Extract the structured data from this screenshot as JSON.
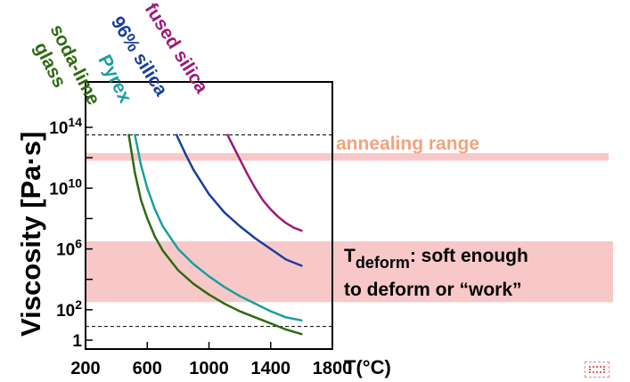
{
  "chart_data": {
    "type": "line",
    "title": "",
    "xlabel": "T(°C)",
    "ylabel": "Viscosity [Pa·s]",
    "x_unit_note": "°C",
    "xlim": [
      200,
      1800
    ],
    "ylim_log10": [
      0,
      17
    ],
    "y_scale": "log",
    "x_ticks": [
      {
        "value": 200,
        "label": "200"
      },
      {
        "value": 600,
        "label": "600"
      },
      {
        "value": 1000,
        "label": "1000"
      },
      {
        "value": 1400,
        "label": "1400"
      },
      {
        "value": 1800,
        "label": "1800"
      }
    ],
    "y_ticks_log10": [
      0,
      2,
      4,
      6,
      8,
      10,
      12,
      14,
      16
    ],
    "y_tick_labels": [
      {
        "log10": 0,
        "base": "1",
        "exp": ""
      },
      {
        "log10": 2,
        "base": "10",
        "exp": "2"
      },
      {
        "log10": 6,
        "base": "10",
        "exp": "6"
      },
      {
        "log10": 10,
        "base": "10",
        "exp": "10"
      },
      {
        "log10": 14,
        "base": "10",
        "exp": "14"
      }
    ],
    "series": [
      {
        "name": "soda-lime glass",
        "color": "#2e6b10",
        "x": [
          480,
          520,
          560,
          600,
          650,
          700,
          800,
          900,
          1000,
          1100,
          1200,
          1300,
          1400,
          1500,
          1600
        ],
        "log10_y": [
          13.5,
          11.0,
          9.2,
          8.0,
          6.8,
          5.9,
          4.6,
          3.7,
          3.0,
          2.4,
          1.9,
          1.5,
          1.1,
          0.7,
          0.4
        ]
      },
      {
        "name": "Pyrex",
        "color": "#1a9f9f",
        "x": [
          520,
          560,
          600,
          650,
          700,
          800,
          900,
          1000,
          1100,
          1200,
          1300,
          1400,
          1500,
          1600
        ],
        "log10_y": [
          13.5,
          11.5,
          10.0,
          8.6,
          7.5,
          6.0,
          5.0,
          4.2,
          3.5,
          2.9,
          2.4,
          1.9,
          1.5,
          1.3
        ]
      },
      {
        "name": "96% silica",
        "color": "#1a3f9c",
        "x": [
          790,
          850,
          900,
          1000,
          1100,
          1200,
          1300,
          1400,
          1500,
          1600
        ],
        "log10_y": [
          13.5,
          12.2,
          11.2,
          9.6,
          8.4,
          7.5,
          6.7,
          6.0,
          5.3,
          4.9
        ]
      },
      {
        "name": "fused silica",
        "color": "#9c1a7c",
        "x": [
          1120,
          1200,
          1250,
          1300,
          1350,
          1400,
          1450,
          1500,
          1550,
          1600
        ],
        "log10_y": [
          13.5,
          11.9,
          10.9,
          10.0,
          9.2,
          8.6,
          8.1,
          7.7,
          7.4,
          7.2
        ]
      }
    ],
    "reference_lines_log10": [
      13.5,
      0.9
    ],
    "bands": [
      {
        "name": "annealing range",
        "log10_from": 11.8,
        "log10_to": 12.3
      },
      {
        "name": "T_deform",
        "log10_from": 2.5,
        "log10_to": 6.5
      }
    ],
    "annotations": {
      "annealing": "annealing range",
      "deform_main": "T",
      "deform_sub": "deform",
      "deform_rest1": ": soft enough",
      "deform_rest2": "to deform or “work”"
    },
    "curve_labels": [
      {
        "series": 0,
        "text": "soda-lime"
      },
      {
        "series": 0,
        "text": "glass"
      },
      {
        "series": 1,
        "text": "Pyrex"
      },
      {
        "series": 2,
        "text": "96% silica"
      },
      {
        "series": 3,
        "text": "fused silica"
      }
    ],
    "band_color": "#f8c8c8",
    "annealing_text_color": "#f3a37f",
    "grid": false,
    "legend": "none"
  }
}
